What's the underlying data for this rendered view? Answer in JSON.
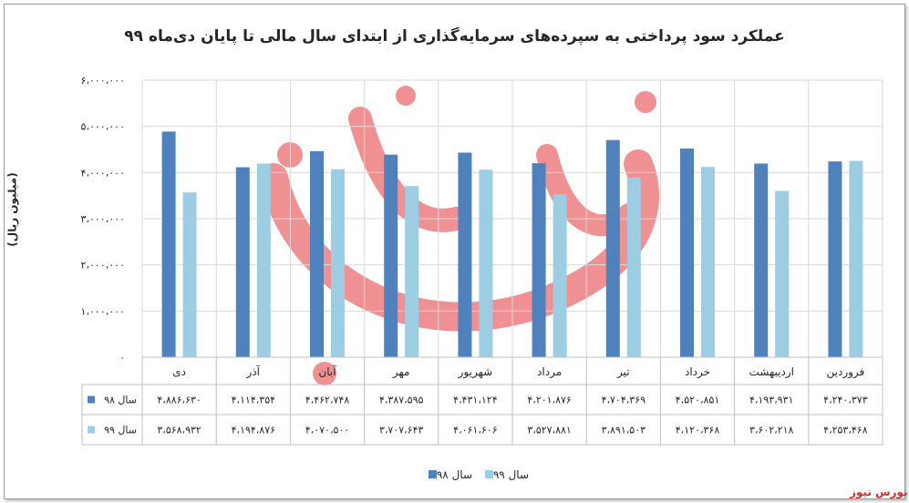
{
  "brand_label": "بورس نیوز",
  "chart_data": {
    "type": "bar",
    "title": "عملکرد سود پرداختی به سپرده‌های سرمایه‌گذاری از ابتدای سال مالی تا پایان دی‌ماه ۹۹",
    "ylabel": "(میلیون ریال)",
    "ylim": [
      0,
      6000000
    ],
    "ytick_values": [
      0,
      1000000,
      2000000,
      3000000,
      4000000,
      5000000,
      6000000
    ],
    "ytick_labels": [
      "۰",
      "۱،۰۰۰،۰۰۰",
      "۲،۰۰۰،۰۰۰",
      "۳،۰۰۰،۰۰۰",
      "۴،۰۰۰،۰۰۰",
      "۵،۰۰۰،۰۰۰",
      "۶،۰۰۰،۰۰۰"
    ],
    "grid": true,
    "legend_position": "bottom",
    "categories": [
      "فروردین",
      "اردیبهشت",
      "خرداد",
      "تیر",
      "مرداد",
      "شهریور",
      "مهر",
      "آبان",
      "آذر",
      "دی"
    ],
    "series": [
      {
        "name": "سال ۹۸",
        "color": "#4f81bd",
        "values": [
          4240373,
          4193931,
          4520851,
          4704369,
          4201876,
          4431124,
          4387595,
          4462748,
          4114354,
          4886630
        ],
        "labels": [
          "۴،۲۴۰،۳۷۳",
          "۴،۱۹۳،۹۳۱",
          "۴،۵۲۰،۸۵۱",
          "۴،۷۰۴،۳۶۹",
          "۴،۲۰۱،۸۷۶",
          "۴،۴۳۱،۱۲۴",
          "۴،۳۸۷،۵۹۵",
          "۴،۴۶۲،۷۴۸",
          "۴،۱۱۴،۳۵۴",
          "۴،۸۸۶،۶۳۰"
        ]
      },
      {
        "name": "سال ۹۹",
        "color": "#9dcde3",
        "values": [
          4253468,
          3602218,
          4120368,
          3891503,
          3527881,
          4061606,
          3707643,
          4070500,
          4194876,
          3568932
        ],
        "labels": [
          "۴،۲۵۳،۴۶۸",
          "۳،۶۰۲،۲۱۸",
          "۴،۱۲۰،۳۶۸",
          "۳،۸۹۱،۵۰۳",
          "۳،۵۲۷،۸۸۱",
          "۴،۰۶۱،۶۰۶",
          "۳،۷۰۷،۶۴۳",
          "۴،۰۷۰،۵۰۰",
          "۴،۱۹۴،۸۷۶",
          "۳،۵۶۸،۹۳۲"
        ]
      }
    ]
  }
}
